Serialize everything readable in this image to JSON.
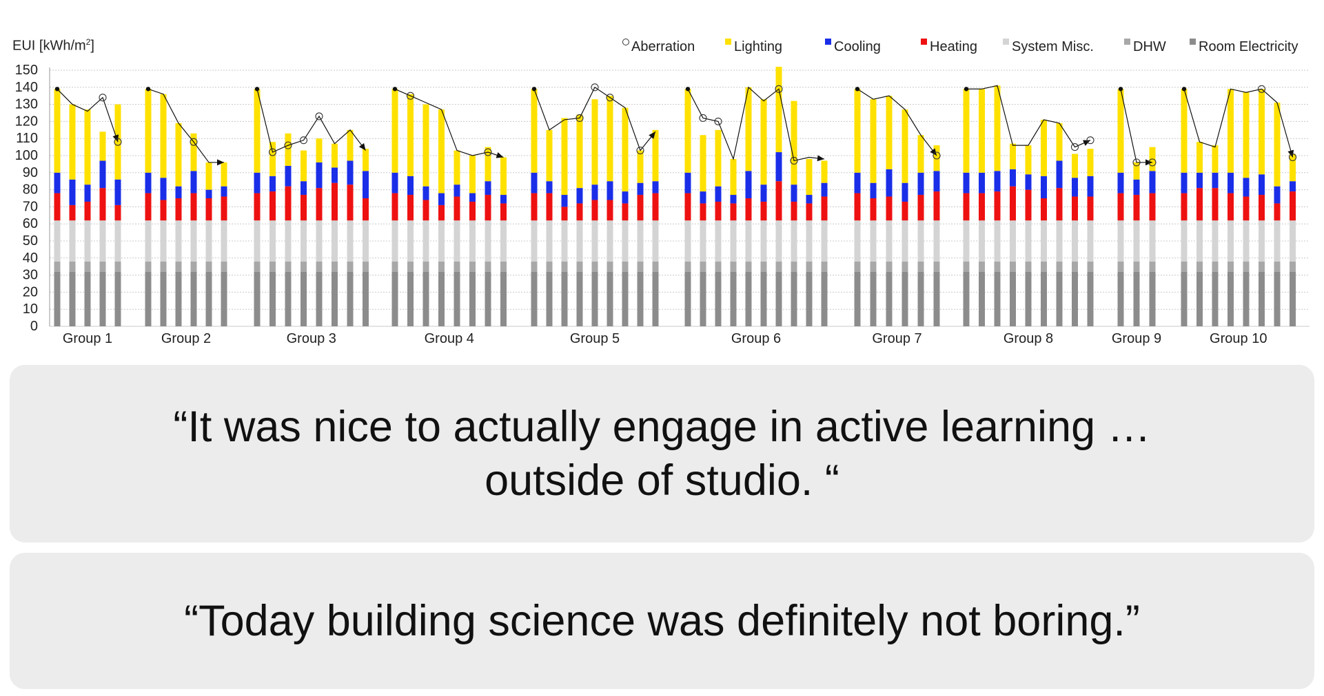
{
  "chart_data": {
    "type": "bar",
    "stacked": true,
    "ylabel_prefix": "EUI [kWh/m",
    "ylabel_sup": "2",
    "ylabel_suffix": "]",
    "ylim": [
      0,
      150
    ],
    "yticks": [
      0,
      10,
      20,
      30,
      40,
      50,
      60,
      70,
      80,
      90,
      100,
      110,
      120,
      130,
      140,
      150
    ],
    "grid": true,
    "legend_position": "top-right",
    "legend": [
      {
        "name": "Aberration",
        "kind": "circle"
      },
      {
        "name": "Lighting",
        "color": "#ffe100"
      },
      {
        "name": "Cooling",
        "color": "#1a2ee8"
      },
      {
        "name": "Heating",
        "color": "#ee1111"
      },
      {
        "name": "System Misc.",
        "color": "#d4d4d4"
      },
      {
        "name": "DHW",
        "color": "#a8a8a8"
      },
      {
        "name": "Room Electricity",
        "color": "#8c8c8c"
      }
    ],
    "base_stack": {
      "Room Electricity": 32,
      "DHW": 6,
      "System Misc.": 24
    },
    "groups": [
      {
        "name": "Group 1",
        "bars": [
          {
            "heating": 78,
            "cooling": 90,
            "total": 139
          },
          {
            "heating": 71,
            "cooling": 86,
            "total": 130
          },
          {
            "heating": 73,
            "cooling": 83,
            "total": 127
          },
          {
            "heating": 81,
            "cooling": 97,
            "total": 114
          },
          {
            "heating": 71,
            "cooling": 86,
            "total": 130
          }
        ],
        "line": [
          139,
          130,
          126,
          134,
          108
        ],
        "markers": [
          "dot",
          "",
          "",
          "circle",
          "circle"
        ],
        "arrow_to": null
      },
      {
        "name": "Group 2",
        "bars": [
          {
            "heating": 78,
            "cooling": 90,
            "total": 139
          },
          {
            "heating": 74,
            "cooling": 87,
            "total": 136
          },
          {
            "heating": 75,
            "cooling": 82,
            "total": 119
          },
          {
            "heating": 78,
            "cooling": 91,
            "total": 113
          },
          {
            "heating": 75,
            "cooling": 80,
            "total": 96
          },
          {
            "heating": 76,
            "cooling": 82,
            "total": 96
          }
        ],
        "line": [
          139,
          136,
          119,
          108,
          96,
          96
        ],
        "markers": [
          "dot",
          "",
          "",
          "circle",
          "",
          ""
        ],
        "arrow_to": null
      },
      {
        "name": "Group 3",
        "bars": [
          {
            "heating": 78,
            "cooling": 90,
            "total": 139
          },
          {
            "heating": 79,
            "cooling": 88,
            "total": 108
          },
          {
            "heating": 82,
            "cooling": 94,
            "total": 113
          },
          {
            "heating": 77,
            "cooling": 85,
            "total": 103
          },
          {
            "heating": 81,
            "cooling": 96,
            "total": 110
          },
          {
            "heating": 84,
            "cooling": 93,
            "total": 107
          },
          {
            "heating": 83,
            "cooling": 97,
            "total": 115
          },
          {
            "heating": 75,
            "cooling": 91,
            "total": 104
          }
        ],
        "line": [
          139,
          102,
          106,
          109,
          123,
          107,
          115,
          103
        ],
        "markers": [
          "dot",
          "circle",
          "circle",
          "circle",
          "circle",
          "",
          "",
          ""
        ],
        "arrow_to": null
      },
      {
        "name": "Group 4",
        "bars": [
          {
            "heating": 78,
            "cooling": 90,
            "total": 139
          },
          {
            "heating": 77,
            "cooling": 88,
            "total": 136
          },
          {
            "heating": 74,
            "cooling": 82,
            "total": 130
          },
          {
            "heating": 71,
            "cooling": 78,
            "total": 127
          },
          {
            "heating": 76,
            "cooling": 83,
            "total": 103
          },
          {
            "heating": 73,
            "cooling": 78,
            "total": 100
          },
          {
            "heating": 77,
            "cooling": 85,
            "total": 105
          },
          {
            "heating": 72,
            "cooling": 77,
            "total": 99
          }
        ],
        "line": [
          139,
          135,
          131,
          127,
          103,
          100,
          102,
          99
        ],
        "markers": [
          "dot",
          "circle",
          "",
          "",
          "",
          "",
          "circle",
          ""
        ],
        "arrow_to": null
      },
      {
        "name": "Group 5",
        "bars": [
          {
            "heating": 78,
            "cooling": 90,
            "total": 139
          },
          {
            "heating": 78,
            "cooling": 85,
            "total": 115
          },
          {
            "heating": 70,
            "cooling": 77,
            "total": 122
          },
          {
            "heating": 72,
            "cooling": 81,
            "total": 124
          },
          {
            "heating": 74,
            "cooling": 83,
            "total": 133
          },
          {
            "heating": 74,
            "cooling": 85,
            "total": 135
          },
          {
            "heating": 72,
            "cooling": 79,
            "total": 128
          },
          {
            "heating": 77,
            "cooling": 84,
            "total": 103
          },
          {
            "heating": 78,
            "cooling": 85,
            "total": 115
          }
        ],
        "line": [
          139,
          115,
          121,
          122,
          140,
          134,
          128,
          103,
          114
        ],
        "markers": [
          "dot",
          "",
          "",
          "circle",
          "circle",
          "circle",
          "",
          "circle",
          ""
        ],
        "arrow_to": null
      },
      {
        "name": "Group 6",
        "bars": [
          {
            "heating": 78,
            "cooling": 90,
            "total": 139
          },
          {
            "heating": 72,
            "cooling": 79,
            "total": 112
          },
          {
            "heating": 73,
            "cooling": 82,
            "total": 115
          },
          {
            "heating": 72,
            "cooling": 77,
            "total": 98
          },
          {
            "heating": 75,
            "cooling": 91,
            "total": 140
          },
          {
            "heating": 73,
            "cooling": 83,
            "total": 133
          },
          {
            "heating": 85,
            "cooling": 102,
            "total": 152
          },
          {
            "heating": 73,
            "cooling": 83,
            "total": 132
          },
          {
            "heating": 72,
            "cooling": 77,
            "total": 98
          },
          {
            "heating": 76,
            "cooling": 84,
            "total": 97
          }
        ],
        "line": [
          139,
          122,
          120,
          98,
          140,
          132,
          139,
          97,
          99,
          98
        ],
        "markers": [
          "dot",
          "circle",
          "circle",
          "",
          "",
          "",
          "circle",
          "circle",
          "",
          ""
        ],
        "arrow_to": null
      },
      {
        "name": "Group 7",
        "bars": [
          {
            "heating": 78,
            "cooling": 90,
            "total": 139
          },
          {
            "heating": 75,
            "cooling": 84,
            "total": 133
          },
          {
            "heating": 76,
            "cooling": 92,
            "total": 135
          },
          {
            "heating": 73,
            "cooling": 84,
            "total": 127
          },
          {
            "heating": 77,
            "cooling": 90,
            "total": 112
          },
          {
            "heating": 79,
            "cooling": 91,
            "total": 106
          }
        ],
        "line": [
          139,
          133,
          135,
          127,
          112,
          100
        ],
        "markers": [
          "dot",
          "",
          "",
          "",
          "",
          "circle"
        ],
        "arrow_to": null
      },
      {
        "name": "Group 8",
        "bars": [
          {
            "heating": 78,
            "cooling": 90,
            "total": 139
          },
          {
            "heating": 78,
            "cooling": 90,
            "total": 139
          },
          {
            "heating": 79,
            "cooling": 91,
            "total": 141
          },
          {
            "heating": 82,
            "cooling": 92,
            "total": 107
          },
          {
            "heating": 80,
            "cooling": 89,
            "total": 106
          },
          {
            "heating": 75,
            "cooling": 88,
            "total": 121
          },
          {
            "heating": 81,
            "cooling": 97,
            "total": 119
          },
          {
            "heating": 76,
            "cooling": 87,
            "total": 101
          },
          {
            "heating": 76,
            "cooling": 88,
            "total": 104
          }
        ],
        "line": [
          139,
          139,
          141,
          106,
          106,
          121,
          119,
          105,
          109
        ],
        "markers": [
          "dot",
          "",
          "",
          "",
          "",
          "",
          "",
          "circle",
          "circle"
        ],
        "arrow_to": null
      },
      {
        "name": "Group 9",
        "bars": [
          {
            "heating": 78,
            "cooling": 90,
            "total": 139
          },
          {
            "heating": 77,
            "cooling": 86,
            "total": 96
          },
          {
            "heating": 78,
            "cooling": 91,
            "total": 105
          }
        ],
        "line": [
          139,
          96,
          96
        ],
        "markers": [
          "dot",
          "circle",
          "circle"
        ],
        "arrow_to": null
      },
      {
        "name": "Group 10",
        "bars": [
          {
            "heating": 78,
            "cooling": 90,
            "total": 139
          },
          {
            "heating": 81,
            "cooling": 90,
            "total": 108
          },
          {
            "heating": 81,
            "cooling": 90,
            "total": 106
          },
          {
            "heating": 78,
            "cooling": 90,
            "total": 139
          },
          {
            "heating": 76,
            "cooling": 87,
            "total": 137
          },
          {
            "heating": 77,
            "cooling": 89,
            "total": 139
          },
          {
            "heating": 72,
            "cooling": 82,
            "total": 131
          },
          {
            "heating": 79,
            "cooling": 85,
            "total": 101
          }
        ],
        "line": [
          139,
          108,
          105,
          139,
          137,
          139,
          131,
          99
        ],
        "markers": [
          "dot",
          "",
          "",
          "",
          "",
          "circle",
          "",
          "circle"
        ],
        "arrow_to": null
      }
    ]
  },
  "quotes": [
    {
      "line1": "“It was nice to actually engage in active learning …",
      "line2": "outside of studio. “"
    },
    {
      "line1": "“Today building science was definitely not boring.”"
    }
  ]
}
